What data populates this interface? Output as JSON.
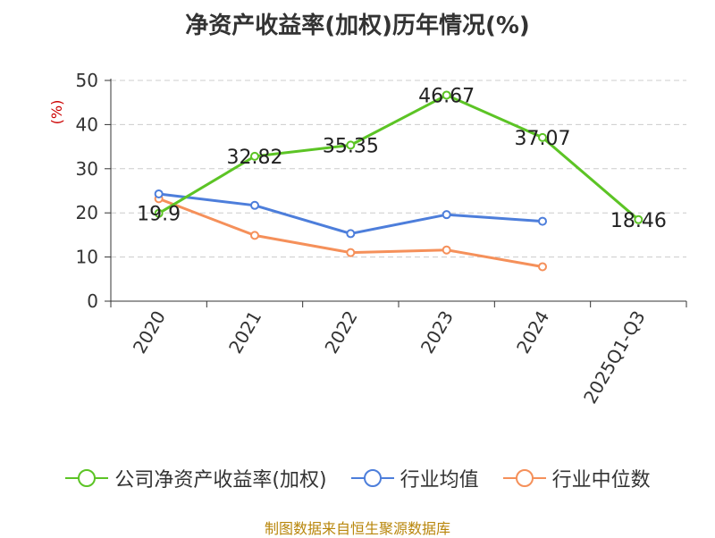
{
  "chart_data": {
    "type": "line",
    "title": "净资产收益率(加权)历年情况(%)",
    "ylabel": "(%)",
    "xlabel": "",
    "ylim": [
      0,
      50
    ],
    "yticks": [
      0,
      10,
      20,
      30,
      40,
      50
    ],
    "grid": true,
    "legend_position": "bottom",
    "categories": [
      "2020",
      "2021",
      "2022",
      "2023",
      "2024",
      "2025Q1-Q3"
    ],
    "series": [
      {
        "name": "公司净资产收益率(加权)",
        "color": "#5cc425",
        "values": [
          19.9,
          32.82,
          35.35,
          46.67,
          37.07,
          18.46
        ],
        "labels": [
          "19.9",
          "32.82",
          "35.35",
          "46.67",
          "37.07",
          "18.46"
        ],
        "show_labels": true
      },
      {
        "name": "行业均值",
        "color": "#4d7edb",
        "values": [
          24.3,
          21.7,
          15.3,
          19.6,
          18.1,
          null
        ],
        "show_labels": false
      },
      {
        "name": "行业中位数",
        "color": "#f5905a",
        "values": [
          23.2,
          14.9,
          11.0,
          11.6,
          7.8,
          null
        ],
        "show_labels": false
      }
    ]
  },
  "source": "制图数据来自恒生聚源数据库"
}
